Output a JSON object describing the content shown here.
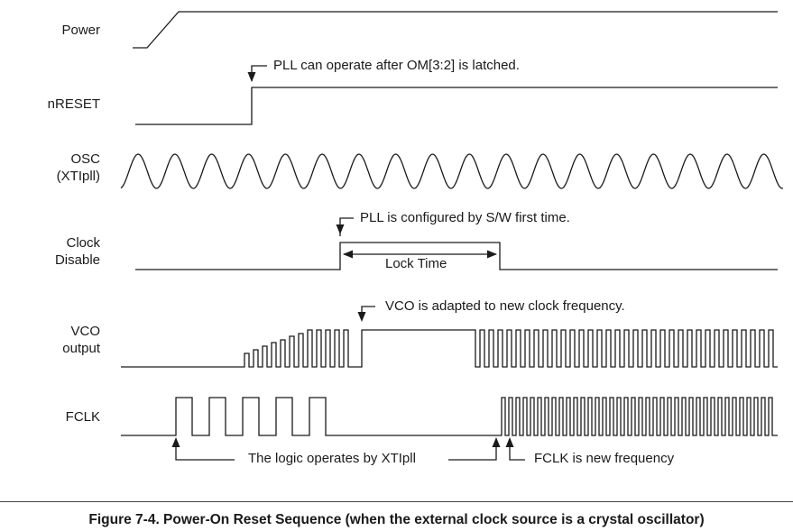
{
  "signals": {
    "power": "Power",
    "nreset": "nRESET",
    "osc_line1": "OSC",
    "osc_line2": "(XTIpll)",
    "clock_disable_line1": "Clock",
    "clock_disable_line2": "Disable",
    "vco_line1": "VCO",
    "vco_line2": "output",
    "fclk": "FCLK"
  },
  "annotations": {
    "pll_latched": "PLL can operate after OM[3:2] is latched.",
    "pll_configured": "PLL is configured by S/W first time.",
    "lock_time": "Lock Time",
    "vco_adapted": "VCO is adapted to new clock frequency.",
    "logic_xtipll": "The logic operates by XTIpll",
    "fclk_new": "FCLK is new frequency"
  },
  "caption": "Figure 7-4. Power-On Reset Sequence (when the external clock source is a crystal oscillator)"
}
